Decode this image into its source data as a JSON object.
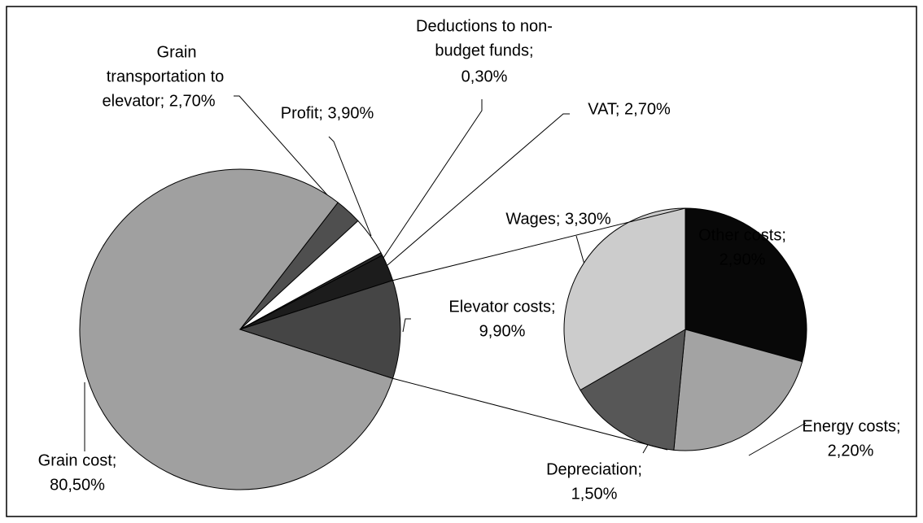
{
  "chart_data": [
    {
      "type": "pie",
      "values": [
        80.5,
        2.7,
        3.9,
        0.3,
        2.7,
        9.9
      ],
      "value_labels": [
        [
          "Grain cost;",
          "80,50%"
        ],
        [
          "Grain",
          "transportation to",
          "elevator; 2,70%"
        ],
        [
          "Profit; 3,90%"
        ],
        [
          "Deductions to non-",
          "budget funds;",
          "0,30%"
        ],
        [
          "VAT; 2,70%"
        ],
        [
          "Elevator costs;",
          "9,90%"
        ]
      ],
      "colors": [
        "#a0a0a0",
        "#4f4f4f",
        "#ffffff",
        "#2a2a2a",
        "#1c1c1c",
        "#454545"
      ]
    },
    {
      "type": "pie",
      "values": [
        2.9,
        2.2,
        1.5,
        3.3
      ],
      "value_labels": [
        [
          "Other costs;",
          "2,90%"
        ],
        [
          "Energy costs;",
          "2,20%"
        ],
        [
          "Depreciation;",
          "1,50%"
        ],
        [
          "Wages; 3,30%"
        ]
      ],
      "colors": [
        "#080808",
        "#a3a3a3",
        "#575757",
        "#cccccc"
      ]
    }
  ]
}
